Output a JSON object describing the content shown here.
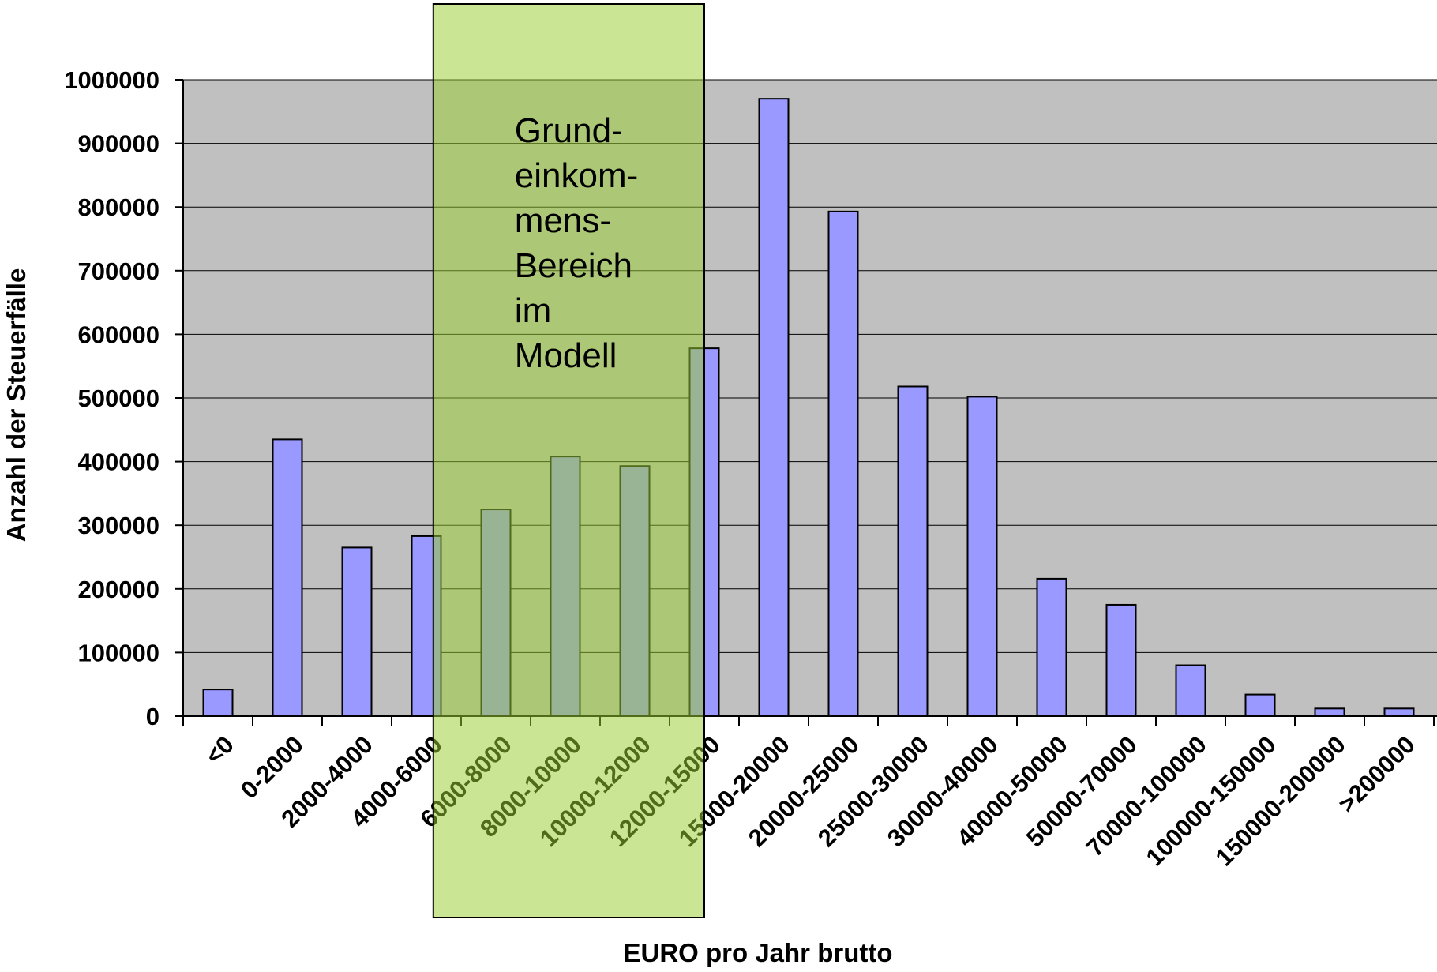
{
  "chart_data": {
    "type": "bar",
    "title": "",
    "xlabel": "EURO pro Jahr brutto",
    "ylabel": "Anzahl der Steuerfälle",
    "ylim": [
      0,
      1000000
    ],
    "yticks": [
      "0",
      "100000",
      "200000",
      "300000",
      "400000",
      "500000",
      "600000",
      "700000",
      "800000",
      "900000",
      "1000000"
    ],
    "grid": true,
    "legend": "none",
    "categories": [
      "<0",
      "0-2000",
      "2000-4000",
      "4000-6000",
      "6000-8000",
      "8000-10000",
      "10000-12000",
      "12000-15000",
      "15000-20000",
      "20000-25000",
      "25000-30000",
      "30000-40000",
      "40000-50000",
      "50000-70000",
      "70000-100000",
      "100000-150000",
      "150000-200000",
      ">200000"
    ],
    "values": [
      42000,
      435000,
      265000,
      283000,
      325000,
      408000,
      393000,
      578000,
      970000,
      793000,
      518000,
      502000,
      216000,
      175000,
      80000,
      34000,
      12000,
      12000
    ],
    "highlight": {
      "from_category": 3.6,
      "to_category": 7.5,
      "label_lines": [
        "Grund-",
        "einkom-",
        "mens-",
        "Bereich",
        "im",
        "Modell"
      ]
    },
    "colors": {
      "plot_background": "#c0c0c0",
      "bar_fill": "#9999ff",
      "bar_stroke": "#000000",
      "highlight_fill": "#9acd32",
      "gridline": "#000000"
    }
  }
}
